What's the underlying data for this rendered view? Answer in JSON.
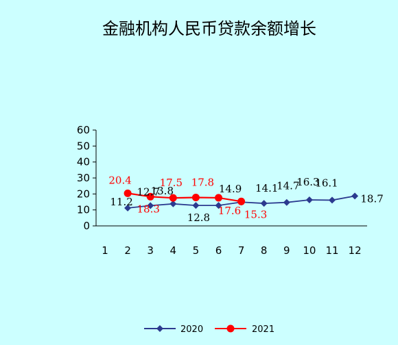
{
  "chart_data": {
    "type": "line",
    "title": "金融机构人民币贷款余额增长",
    "xlabel": "",
    "ylabel": "",
    "categories": [
      "1",
      "2",
      "3",
      "4",
      "5",
      "6",
      "7",
      "8",
      "9",
      "10",
      "11",
      "12"
    ],
    "ylim": [
      0,
      60
    ],
    "yticks": [
      "0",
      "10",
      "20",
      "30",
      "40",
      "50",
      "60"
    ],
    "grid": false,
    "legend_position": "bottom",
    "series": [
      {
        "name": "2020",
        "color": "#2b3a8f",
        "marker": "diamond",
        "values": [
          null,
          11.2,
          12.7,
          13.8,
          12.8,
          12.8,
          14.9,
          14.1,
          14.7,
          16.3,
          16.1,
          18.7
        ],
        "labels": [
          "",
          "11.2",
          "12.7",
          "13.8",
          "12.8",
          "",
          "14.9",
          "14.1",
          "14.7",
          "16.3",
          "16.1",
          "18.7"
        ]
      },
      {
        "name": "2021",
        "color": "#ff0000",
        "marker": "circle",
        "values": [
          null,
          20.4,
          18.3,
          17.5,
          17.8,
          17.6,
          15.3,
          null,
          null,
          null,
          null,
          null
        ],
        "labels": [
          "",
          "20.4",
          "18.3",
          "17.5",
          "17.8",
          "17.6",
          "15.3",
          "",
          "",
          "",
          "",
          ""
        ]
      }
    ]
  }
}
